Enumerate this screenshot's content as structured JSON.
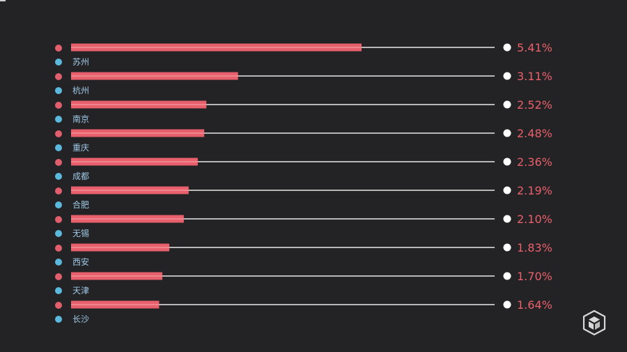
{
  "colors": {
    "background": "#232325",
    "bar": "#e8606b",
    "bar_highlight": "#f2a0a6",
    "value_text": "#e8606b",
    "line": "#e9e9e9",
    "end_dot": "#ffffff",
    "legend_dot_value": "#e15f6d",
    "legend_dot_city": "#5bb9dd",
    "city_label": "#9ec9e6"
  },
  "logo_icon": "cube-logo-icon",
  "chart_data": {
    "type": "bar",
    "orientation": "horizontal",
    "categories": [
      "苏州",
      "杭州",
      "南京",
      "重庆",
      "成都",
      "合肥",
      "无锡",
      "西安",
      "天津",
      "长沙"
    ],
    "values": [
      5.41,
      3.11,
      2.52,
      2.48,
      2.36,
      2.19,
      2.1,
      1.83,
      1.7,
      1.64
    ],
    "value_labels": [
      "5.41%",
      "3.11%",
      "2.52%",
      "2.48%",
      "2.36%",
      "2.19%",
      "2.10%",
      "1.83%",
      "1.70%",
      "1.64%"
    ],
    "xlim": [
      0,
      5.41
    ],
    "grid": false,
    "title": "",
    "xlabel": "",
    "ylabel": ""
  }
}
